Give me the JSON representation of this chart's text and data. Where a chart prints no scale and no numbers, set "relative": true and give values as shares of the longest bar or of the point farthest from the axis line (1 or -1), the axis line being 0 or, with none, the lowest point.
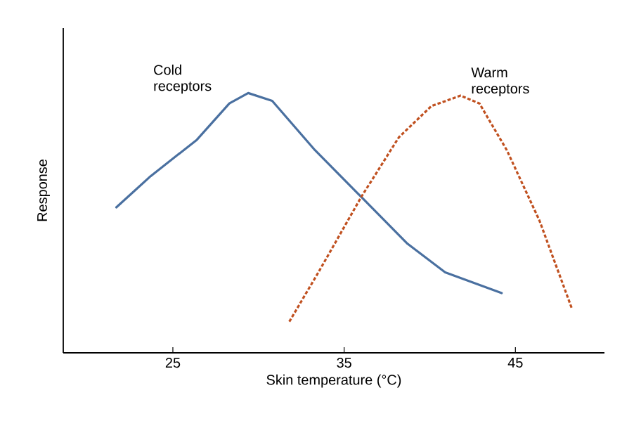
{
  "chart_data": {
    "type": "line",
    "relative": true,
    "xlabel": "Skin temperature (°C)",
    "ylabel": "Response",
    "xlim": [
      18.6,
      50.2
    ],
    "xticks": [
      25,
      35,
      45
    ],
    "grid": false,
    "series": [
      {
        "name": "Cold receptors",
        "color": "#4a70a0",
        "line_style": "solid",
        "x": [
          21.7,
          23.7,
          26.4,
          28.3,
          29.4,
          30.8,
          33.3,
          36.0,
          38.7,
          40.9,
          44.2
        ],
        "values": [
          0.56,
          0.68,
          0.82,
          0.96,
          1.0,
          0.97,
          0.78,
          0.6,
          0.42,
          0.31,
          0.23
        ]
      },
      {
        "name": "Warm receptors",
        "color": "#c0501f",
        "line_style": "dashed",
        "x": [
          31.8,
          33.5,
          36.0,
          38.2,
          40.1,
          41.8,
          42.9,
          44.5,
          46.4,
          48.3
        ],
        "values": [
          0.12,
          0.31,
          0.6,
          0.83,
          0.95,
          0.99,
          0.96,
          0.78,
          0.51,
          0.17
        ]
      }
    ]
  }
}
